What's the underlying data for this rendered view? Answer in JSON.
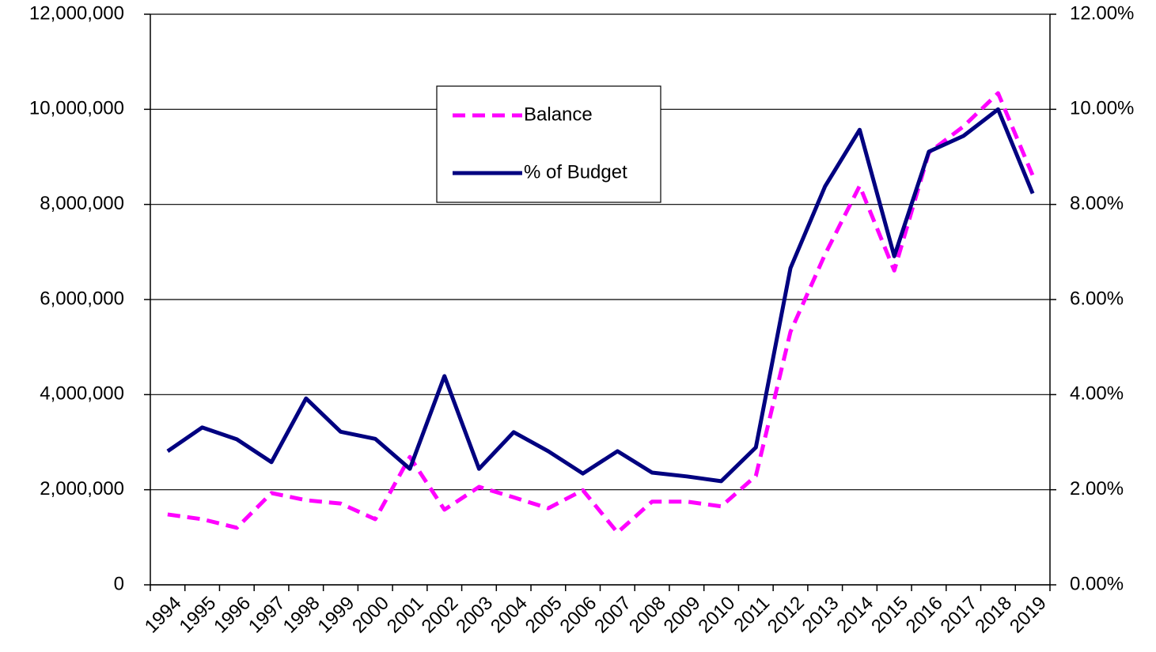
{
  "chart_data": {
    "type": "line",
    "categories": [
      "1994",
      "1995",
      "1996",
      "1997",
      "1998",
      "1999",
      "2000",
      "2001",
      "2002",
      "2003",
      "2004",
      "2005",
      "2006",
      "2007",
      "2008",
      "2009",
      "2010",
      "2011",
      "2012",
      "2013",
      "2014",
      "2015",
      "2016",
      "2017",
      "2018",
      "2019"
    ],
    "series": [
      {
        "name": "Balance",
        "color": "#ff00ff",
        "dashed": true,
        "values": [
          1480000,
          1380000,
          1200000,
          1930000,
          1780000,
          1710000,
          1380000,
          2690000,
          1580000,
          2060000,
          1840000,
          1610000,
          1990000,
          1100000,
          1750000,
          1750000,
          1650000,
          2290000,
          5320000,
          6950000,
          8390000,
          6610000,
          9090000,
          9640000,
          10340000,
          8610000
        ]
      },
      {
        "name": "% of Budget",
        "color": "#000080",
        "axis": "y2",
        "values": [
          2.81,
          3.31,
          3.06,
          2.58,
          3.92,
          3.22,
          3.07,
          2.44,
          4.39,
          2.44,
          3.21,
          2.81,
          2.34,
          2.81,
          2.36,
          2.28,
          2.18,
          2.89,
          6.66,
          8.38,
          9.57,
          6.91,
          9.11,
          9.44,
          10.0,
          8.23
        ]
      }
    ],
    "ylim": [
      0,
      12000000
    ],
    "yticks": [
      0,
      {
        "value": 2000000,
        "label": "2,000,000"
      },
      {
        "value": 4000000,
        "label": "4,000,000"
      },
      {
        "value": 6000000,
        "label": "6,000,000"
      },
      {
        "value": 8000000,
        "label": "8,000,000"
      },
      {
        "value": 10000000,
        "label": "10,000,000"
      },
      {
        "value": 12000000,
        "label": "12,000,000"
      }
    ],
    "y2lim": [
      0,
      12
    ],
    "y2ticks": [
      {
        "value": 0,
        "label": "0.00%"
      },
      {
        "value": 2,
        "label": "2.00%"
      },
      {
        "value": 4,
        "label": "4.00%"
      },
      {
        "value": 6,
        "label": "6.00%"
      },
      {
        "value": 8,
        "label": "8.00%"
      },
      {
        "value": 10,
        "label": "10.00%"
      },
      {
        "value": 12,
        "label": "12.00%"
      }
    ],
    "grid": true,
    "legend": "upper center"
  }
}
